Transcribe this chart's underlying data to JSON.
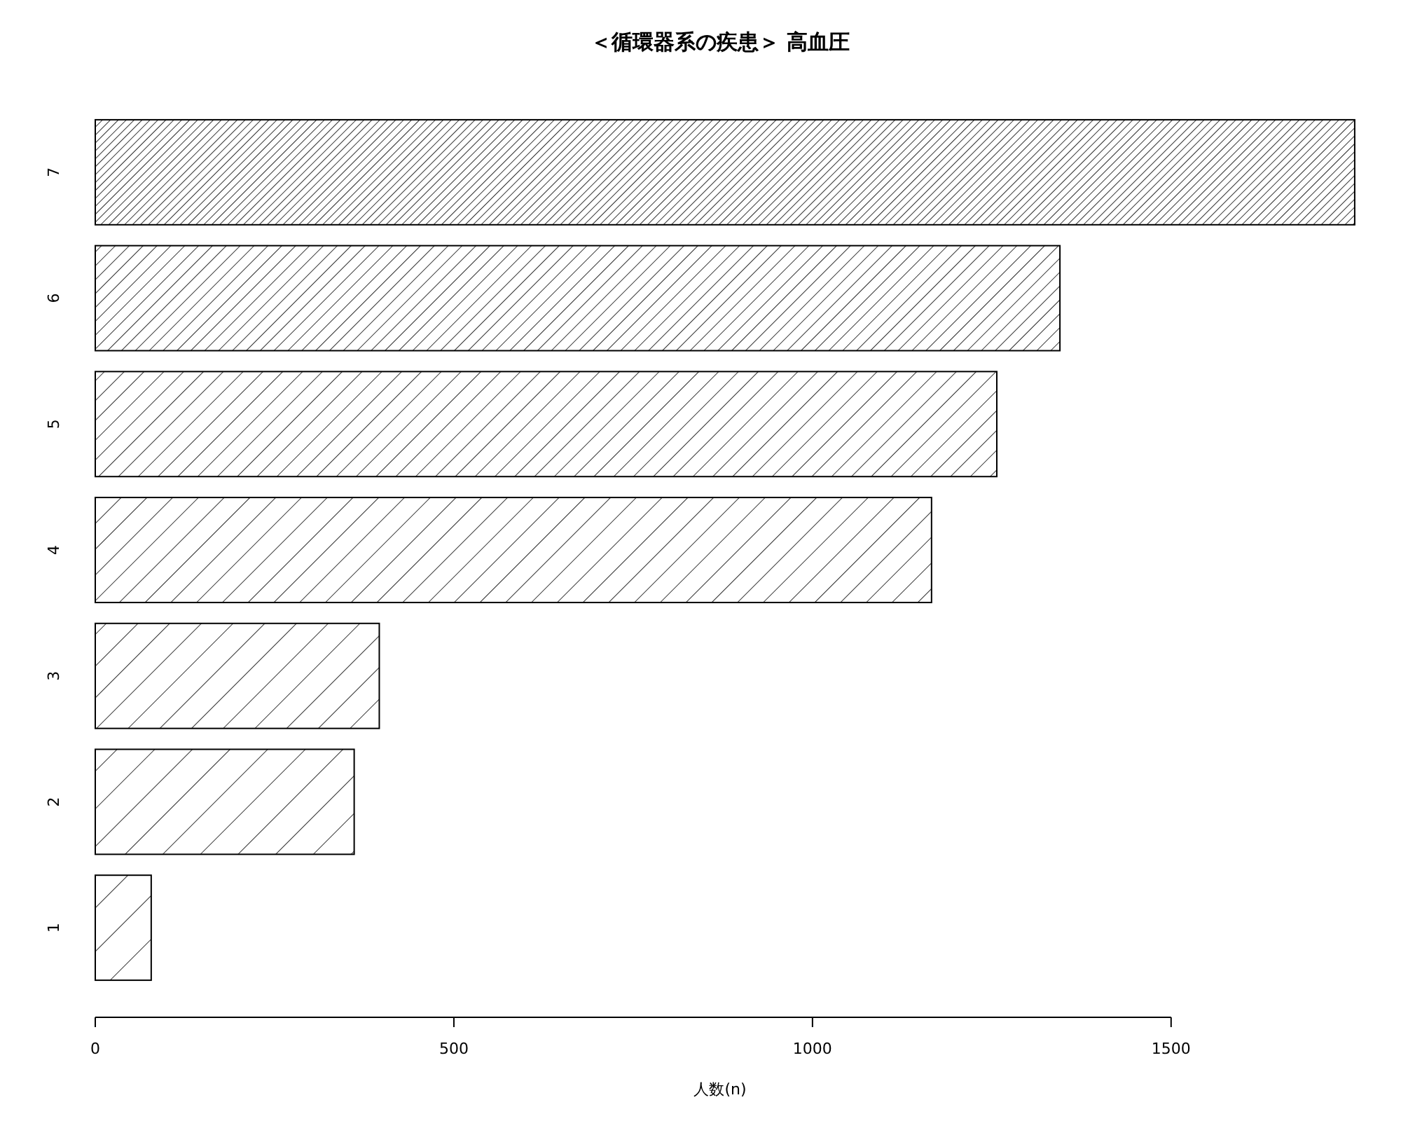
{
  "chart_data": {
    "type": "bar",
    "orientation": "horizontal",
    "title": "＜循環器系の疾患＞ 高血圧",
    "xlabel": "人数(n)",
    "categories": [
      "7",
      "6",
      "5",
      "4",
      "3",
      "2",
      "1"
    ],
    "values": [
      1756,
      1345,
      1257,
      1166,
      396,
      361,
      78
    ],
    "color": "#000000",
    "xlim": [
      0,
      1760
    ],
    "xticks": [
      0,
      500,
      1000,
      1500
    ],
    "grid": false
  }
}
